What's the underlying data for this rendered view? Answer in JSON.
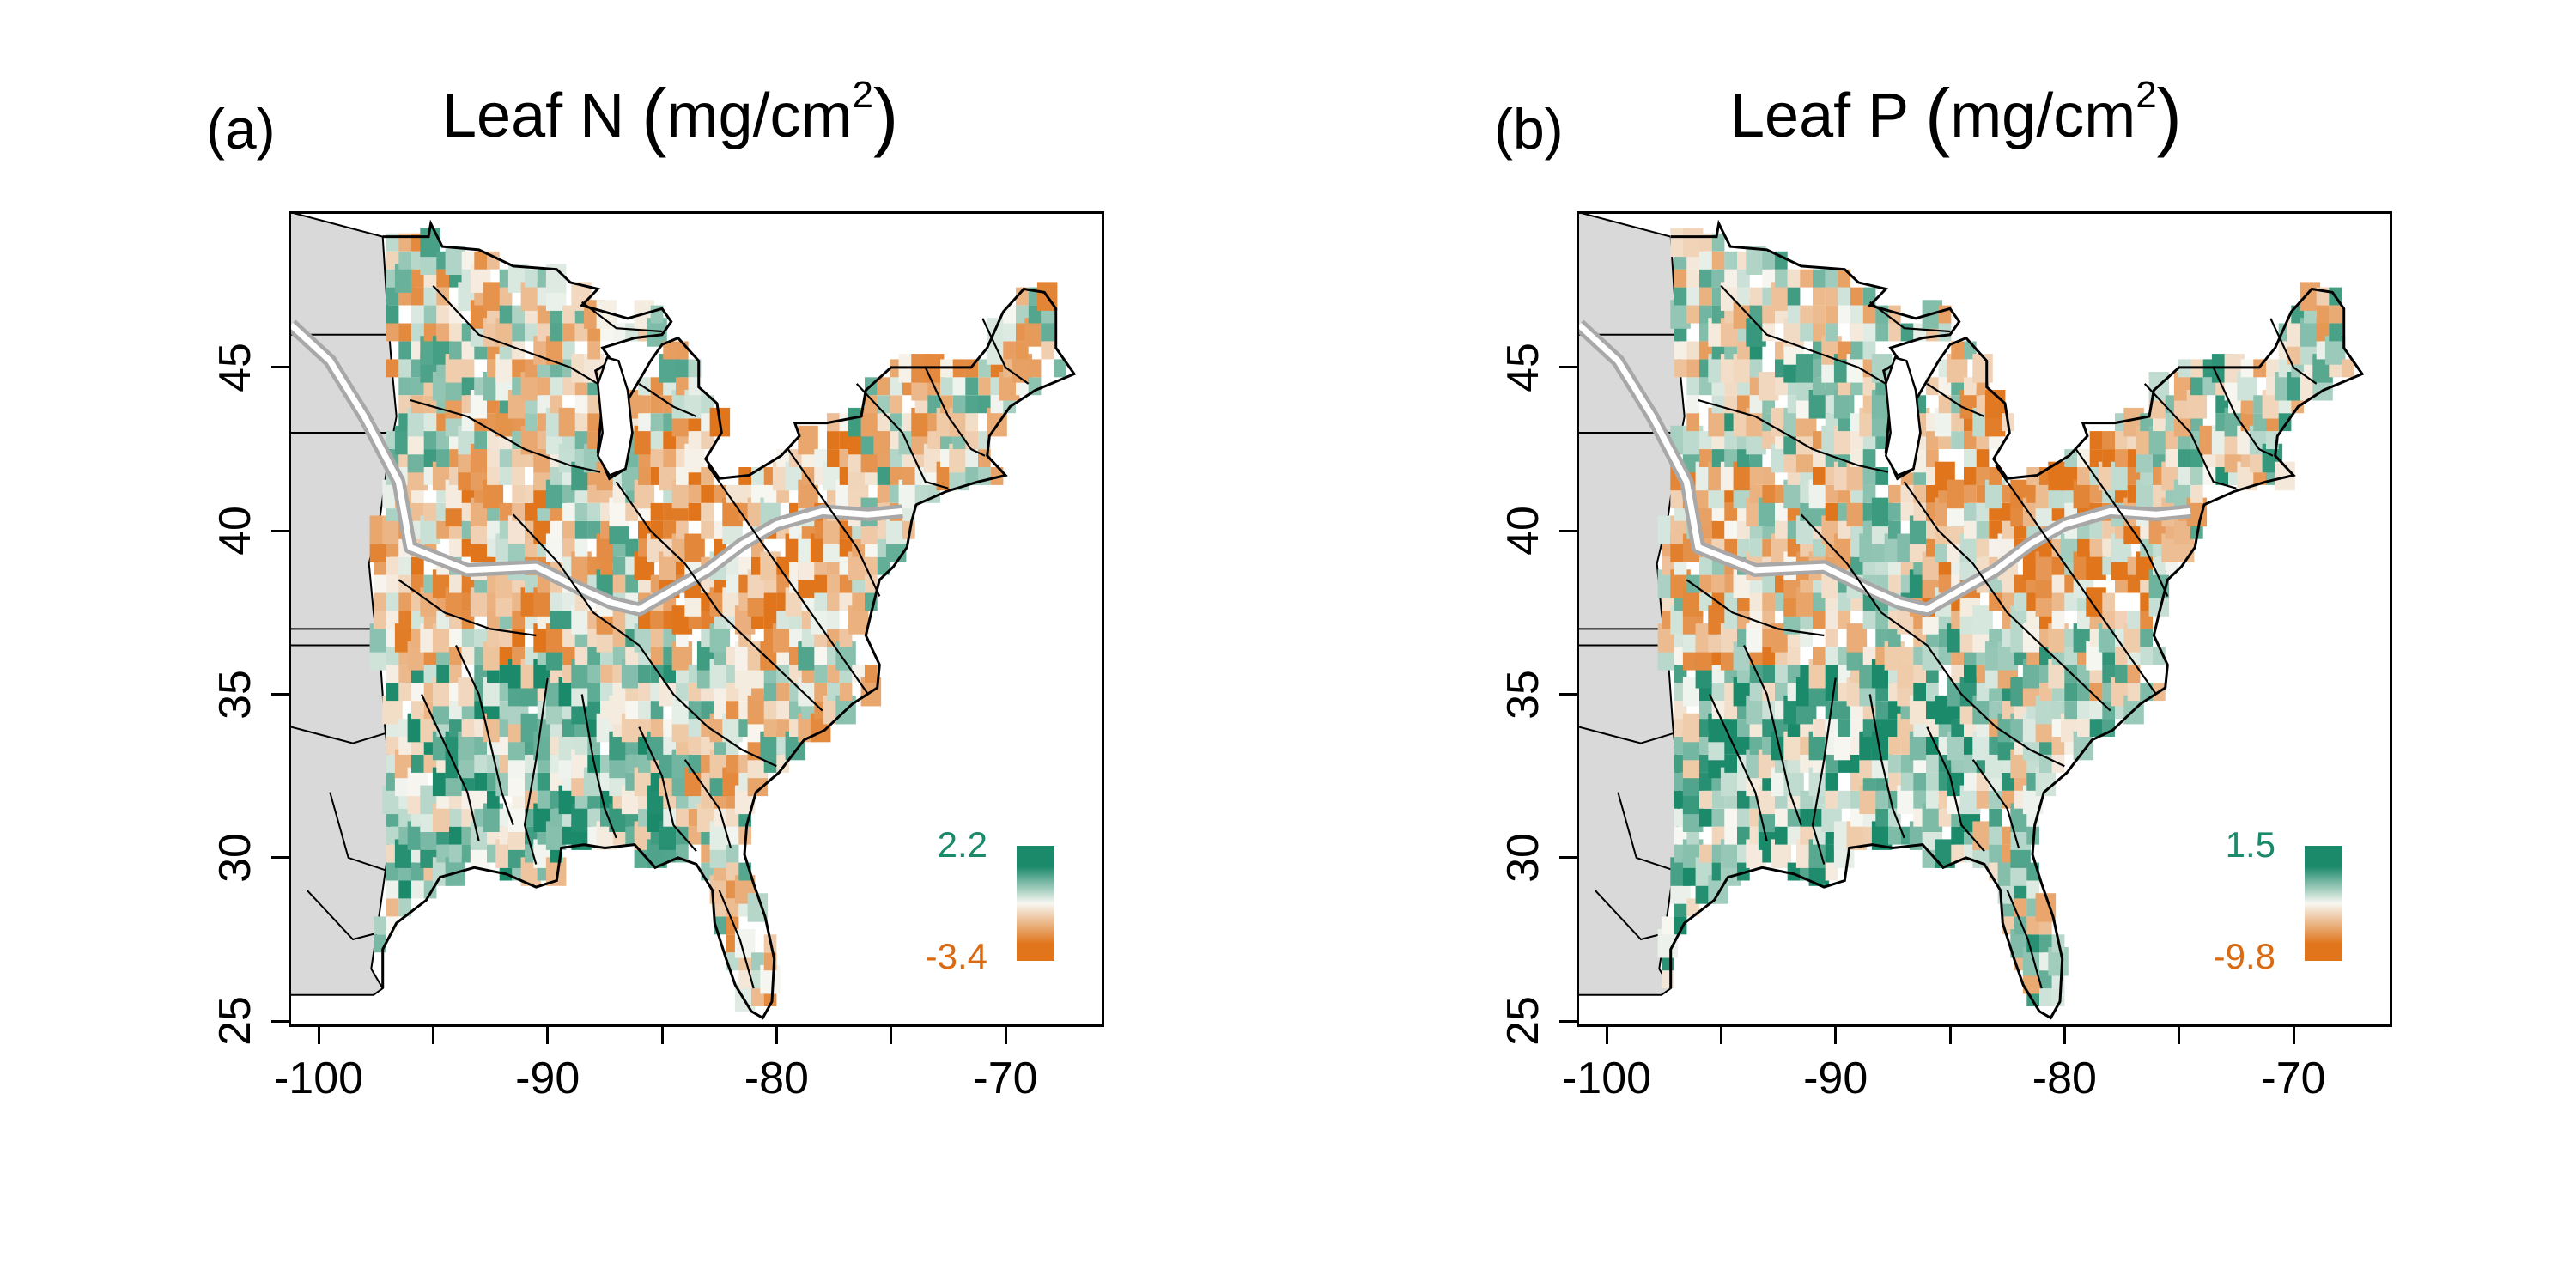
{
  "panels": [
    {
      "letter": "(a)",
      "title_main": "Leaf N",
      "title_unit": "mg/cm",
      "title_sup": "2",
      "legend": {
        "max": "2.2",
        "min": "-3.4"
      }
    },
    {
      "letter": "(b)",
      "title_main": "Leaf P",
      "title_unit": "mg/cm",
      "title_sup": "2",
      "legend": {
        "max": "1.5",
        "min": "-9.8"
      }
    }
  ],
  "axes": {
    "x_ticks": [
      "-100",
      "-90",
      "-80",
      "-70"
    ],
    "y_ticks": [
      "25",
      "30",
      "35",
      "40",
      "45"
    ],
    "xlim": [
      -101.2,
      -65.8
    ],
    "ylim": [
      24.9,
      49.7
    ]
  },
  "colors": {
    "high": "#1b8a6b",
    "mid": "#f7f7f2",
    "low": "#e0751c",
    "land_outside": "#d9d9d9",
    "legend_max_text": "#1b8a6b",
    "legend_min_text": "#d96a12",
    "band": "#a8a8a8"
  }
}
